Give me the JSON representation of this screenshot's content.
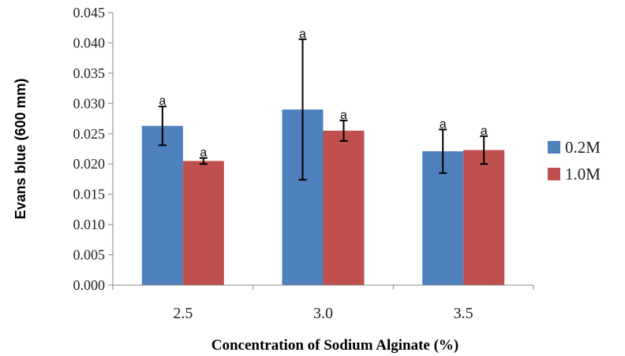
{
  "chart_data": {
    "type": "bar",
    "categories": [
      "2.5",
      "3.0",
      "3.5"
    ],
    "series": [
      {
        "name": "0.2M",
        "color": "#4f81bd",
        "values": [
          0.0263,
          0.029,
          0.0221
        ],
        "errors": [
          0.0032,
          0.0116,
          0.0036
        ],
        "sig": [
          "a",
          "a",
          "a"
        ]
      },
      {
        "name": "1.0M",
        "color": "#c0504d",
        "values": [
          0.0205,
          0.0255,
          0.0223
        ],
        "errors": [
          0.0005,
          0.0017,
          0.0023
        ],
        "sig": [
          "a",
          "a",
          "a"
        ]
      }
    ],
    "xlabel": "Concentration of Sodium Alginate (%)",
    "ylabel": "Evans blue (600 mm)",
    "ylim": [
      0,
      0.045
    ],
    "yticks": [
      "0.000",
      "0.005",
      "0.010",
      "0.015",
      "0.020",
      "0.025",
      "0.030",
      "0.035",
      "0.040",
      "0.045"
    ],
    "grid": false,
    "legend_position": "right"
  }
}
